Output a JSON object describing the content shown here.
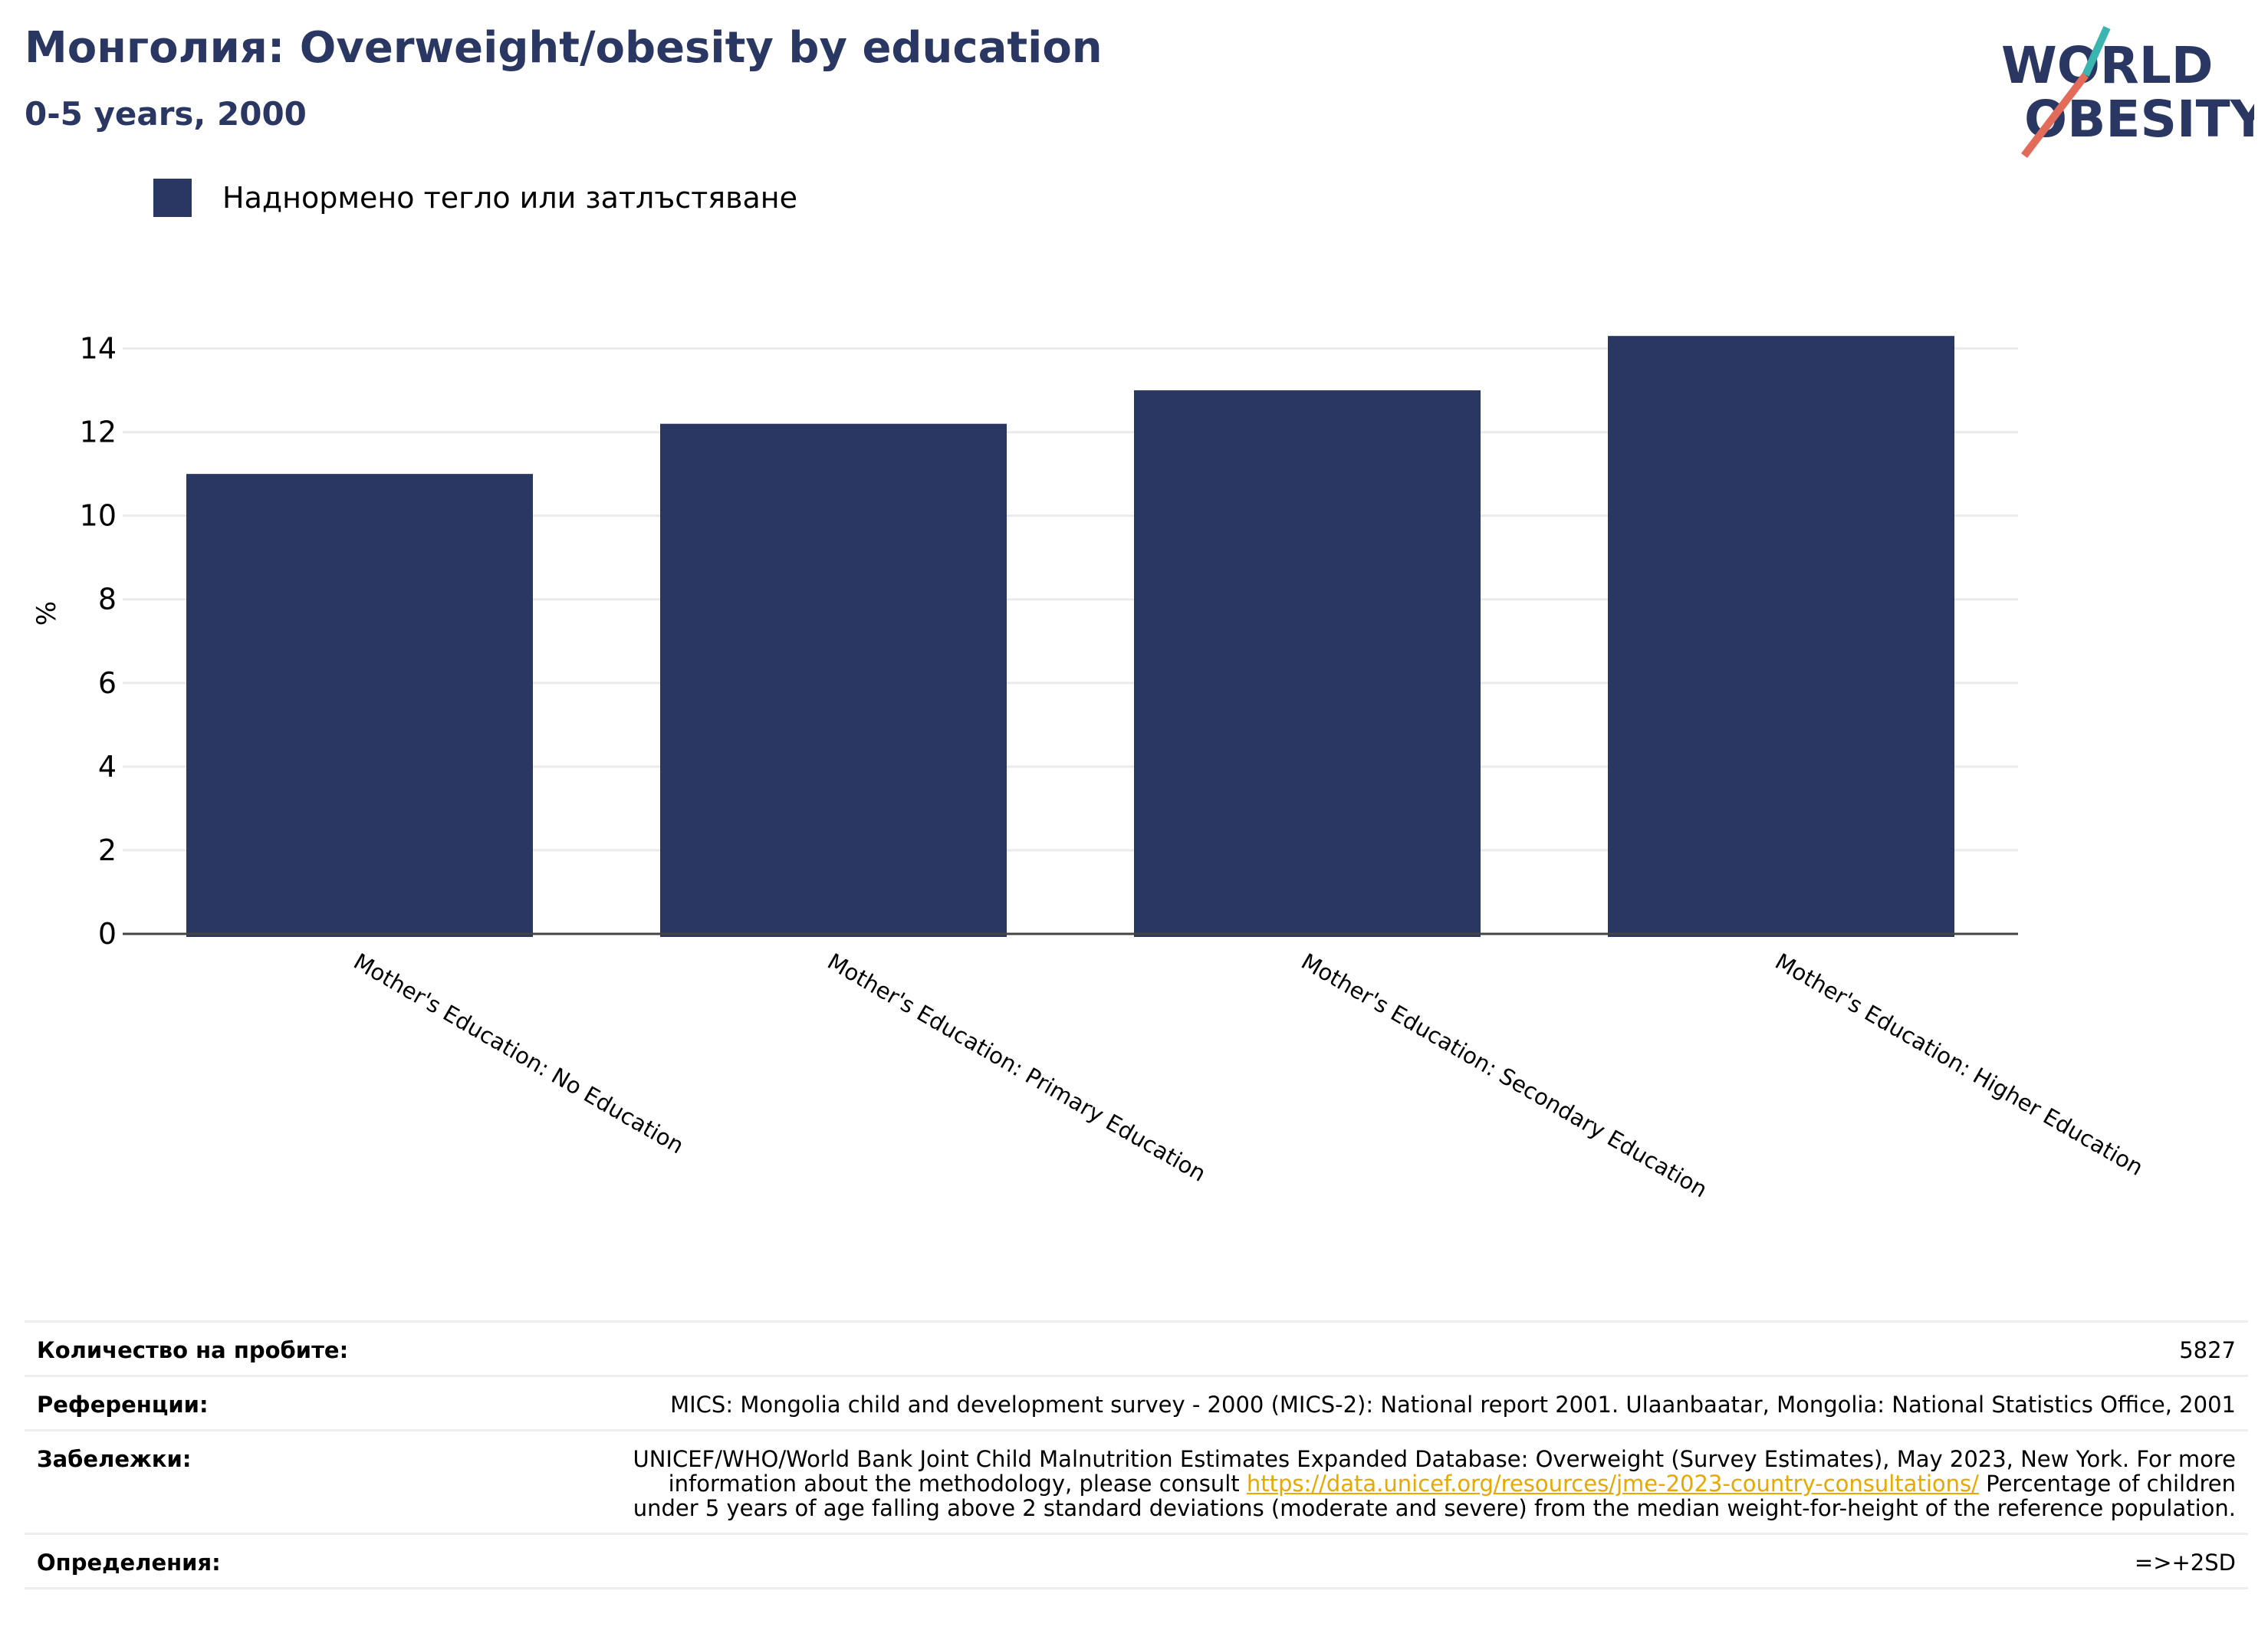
{
  "header": {
    "title": "Монголия: Overweight/obesity by education",
    "subtitle": "0-5 years, 2000"
  },
  "logo": {
    "line1": "WORLD",
    "line2": "OBESITY"
  },
  "legend": {
    "label": "Наднормено тегло или затлъстяване"
  },
  "colors": {
    "bar": "#2b3763",
    "accent_teal": "#3bb5b0",
    "accent_coral": "#e26b5a",
    "link": "#e9a800"
  },
  "chart_data": {
    "type": "bar",
    "categories": [
      "Mother's Education: No Education",
      "Mother's Education: Primary Education",
      "Mother's Education: Secondary Education",
      "Mother's Education: Higher Education"
    ],
    "series": [
      {
        "name": "Наднормено тегло или затлъстяване",
        "values": [
          11.0,
          12.2,
          13.0,
          14.3
        ]
      }
    ],
    "ylabel": "%",
    "xlabel": "",
    "ylim": [
      0,
      15
    ],
    "yticks": [
      0,
      2,
      4,
      6,
      8,
      10,
      12,
      14
    ],
    "grid": true,
    "legend_position": "top-left"
  },
  "footer": {
    "sample_size_label": "Количество на пробите:",
    "sample_size_value": "5827",
    "references_label": "Референции:",
    "references_value": "MICS: Mongolia child and development survey - 2000 (MICS-2): National report 2001. Ulaanbaatar, Mongolia: National Statistics Office, 2001",
    "notes_label": "Забележки:",
    "notes_before_link": "UNICEF/WHO/World Bank Joint Child Malnutrition Estimates Expanded Database: Overweight (Survey Estimates), May 2023, New York. For more information about the methodology, please consult ",
    "notes_link": "https://data.unicef.org/resources/jme-2023-country-consultations/",
    "notes_after_link": " Percentage of children under 5 years of age falling above 2 standard deviations (moderate and severe) from the median weight-for-height of the reference population.",
    "definitions_label": "Определения:",
    "definitions_value": "=>+2SD"
  }
}
